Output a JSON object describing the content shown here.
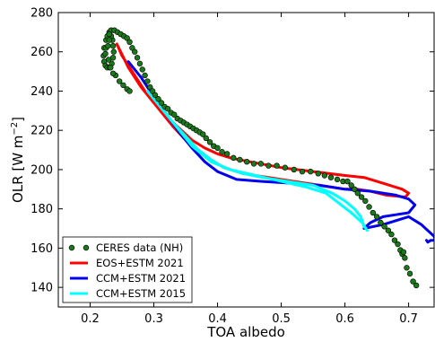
{
  "chart_data": {
    "type": "line",
    "xlabel": "TOA albedo",
    "ylabel_main": "OLR [W m",
    "ylabel_sup": "−2",
    "ylabel_close": "]",
    "xlim": [
      0.15,
      0.74
    ],
    "ylim": [
      130,
      280
    ],
    "xticks": [
      0.2,
      0.3,
      0.4,
      0.5,
      0.6,
      0.7
    ],
    "yticks": [
      140,
      160,
      180,
      200,
      220,
      240,
      260,
      280
    ],
    "grid": false,
    "legend_position": "bottom-left",
    "series": [
      {
        "name": "CERES data (NH)",
        "style": "markers",
        "color": "#1a7a1a",
        "points": [
          [
            0.225,
            266
          ],
          [
            0.227,
            268
          ],
          [
            0.23,
            270
          ],
          [
            0.233,
            271
          ],
          [
            0.238,
            271
          ],
          [
            0.243,
            270
          ],
          [
            0.248,
            269
          ],
          [
            0.253,
            268
          ],
          [
            0.258,
            267
          ],
          [
            0.262,
            265
          ],
          [
            0.266,
            262
          ],
          [
            0.27,
            260
          ],
          [
            0.274,
            257
          ],
          [
            0.278,
            254
          ],
          [
            0.282,
            251
          ],
          [
            0.286,
            248
          ],
          [
            0.29,
            245
          ],
          [
            0.294,
            242
          ],
          [
            0.298,
            240
          ],
          [
            0.302,
            238
          ],
          [
            0.307,
            236
          ],
          [
            0.312,
            234
          ],
          [
            0.317,
            232
          ],
          [
            0.322,
            231
          ],
          [
            0.327,
            229
          ],
          [
            0.332,
            228
          ],
          [
            0.337,
            226
          ],
          [
            0.342,
            225
          ],
          [
            0.347,
            224
          ],
          [
            0.352,
            223
          ],
          [
            0.357,
            222
          ],
          [
            0.362,
            221
          ],
          [
            0.367,
            220
          ],
          [
            0.372,
            219
          ],
          [
            0.377,
            218
          ],
          [
            0.382,
            216
          ],
          [
            0.388,
            214
          ],
          [
            0.394,
            212
          ],
          [
            0.4,
            211
          ],
          [
            0.407,
            209
          ],
          [
            0.415,
            208
          ],
          [
            0.425,
            206
          ],
          [
            0.435,
            205
          ],
          [
            0.446,
            204
          ],
          [
            0.457,
            203
          ],
          [
            0.468,
            203
          ],
          [
            0.48,
            202
          ],
          [
            0.493,
            202
          ],
          [
            0.506,
            201
          ],
          [
            0.52,
            200
          ],
          [
            0.533,
            199
          ],
          [
            0.546,
            199
          ],
          [
            0.558,
            198
          ],
          [
            0.568,
            197
          ],
          [
            0.578,
            196
          ],
          [
            0.588,
            195
          ],
          [
            0.597,
            194
          ],
          [
            0.604,
            194
          ],
          [
            0.61,
            192
          ],
          [
            0.615,
            190
          ],
          [
            0.62,
            188
          ],
          [
            0.626,
            186
          ],
          [
            0.632,
            184
          ],
          [
            0.638,
            181
          ],
          [
            0.644,
            178
          ],
          [
            0.65,
            176
          ],
          [
            0.656,
            173
          ],
          [
            0.662,
            171
          ],
          [
            0.668,
            169
          ],
          [
            0.673,
            167
          ],
          [
            0.678,
            164
          ],
          [
            0.683,
            162
          ],
          [
            0.687,
            159
          ],
          [
            0.69,
            157
          ],
          [
            0.692,
            158
          ],
          [
            0.694,
            155
          ],
          [
            0.697,
            150
          ],
          [
            0.702,
            147
          ],
          [
            0.707,
            143
          ],
          [
            0.712,
            141
          ],
          [
            0.222,
            262
          ],
          [
            0.221,
            258
          ],
          [
            0.222,
            255
          ],
          [
            0.224,
            253
          ],
          [
            0.227,
            252
          ],
          [
            0.231,
            252
          ],
          [
            0.234,
            254
          ],
          [
            0.236,
            257
          ],
          [
            0.237,
            260
          ],
          [
            0.236,
            263
          ],
          [
            0.235,
            266
          ],
          [
            0.233,
            268
          ],
          [
            0.23,
            269
          ],
          [
            0.24,
            248
          ],
          [
            0.246,
            245
          ],
          [
            0.252,
            243
          ],
          [
            0.258,
            241
          ],
          [
            0.262,
            240
          ],
          [
            0.225,
            262
          ],
          [
            0.229,
            256
          ],
          [
            0.232,
            252
          ],
          [
            0.236,
            249
          ],
          [
            0.23,
            266
          ],
          [
            0.224,
            259
          ],
          [
            0.228,
            263
          ]
        ]
      },
      {
        "name": "EOS+ESTM 2021",
        "style": "line",
        "color": "#ff0000",
        "points": [
          [
            0.242,
            264
          ],
          [
            0.26,
            252
          ],
          [
            0.28,
            242
          ],
          [
            0.3,
            234
          ],
          [
            0.32,
            227
          ],
          [
            0.34,
            221
          ],
          [
            0.36,
            215
          ],
          [
            0.38,
            211
          ],
          [
            0.4,
            208
          ],
          [
            0.42,
            206
          ],
          [
            0.45,
            204
          ],
          [
            0.5,
            201
          ],
          [
            0.55,
            199
          ],
          [
            0.6,
            197
          ],
          [
            0.63,
            196
          ],
          [
            0.66,
            193
          ],
          [
            0.69,
            190
          ],
          [
            0.7,
            188
          ],
          [
            0.695,
            186
          ],
          [
            0.665,
            187
          ],
          [
            0.64,
            189
          ],
          [
            0.62,
            190
          ],
          [
            0.6,
            190
          ],
          [
            0.56,
            192
          ],
          [
            0.52,
            194
          ],
          [
            0.48,
            196
          ],
          [
            0.44,
            198
          ],
          [
            0.41,
            201
          ],
          [
            0.39,
            205
          ],
          [
            0.37,
            209
          ],
          [
            0.35,
            215
          ],
          [
            0.33,
            222
          ],
          [
            0.31,
            230
          ],
          [
            0.29,
            238
          ],
          [
            0.27,
            248
          ],
          [
            0.25,
            258
          ],
          [
            0.242,
            264
          ]
        ]
      },
      {
        "name": "CCM+ESTM 2021",
        "style": "line",
        "color": "#0000ee",
        "points": [
          [
            0.26,
            255
          ],
          [
            0.28,
            247
          ],
          [
            0.3,
            237
          ],
          [
            0.32,
            228
          ],
          [
            0.34,
            219
          ],
          [
            0.36,
            211
          ],
          [
            0.38,
            204
          ],
          [
            0.4,
            199
          ],
          [
            0.43,
            195
          ],
          [
            0.47,
            194
          ],
          [
            0.52,
            193
          ],
          [
            0.56,
            192
          ],
          [
            0.6,
            190
          ],
          [
            0.64,
            189
          ],
          [
            0.68,
            187
          ],
          [
            0.7,
            185
          ],
          [
            0.71,
            182
          ],
          [
            0.7,
            178
          ],
          [
            0.68,
            177
          ],
          [
            0.66,
            176
          ],
          [
            0.64,
            173
          ],
          [
            0.63,
            170
          ],
          [
            0.66,
            172
          ],
          [
            0.7,
            176
          ],
          [
            0.72,
            172
          ],
          [
            0.74,
            166
          ],
          [
            0.742,
            164
          ],
          [
            0.735,
            164
          ],
          [
            0.73,
            163
          ],
          [
            0.728,
            164
          ]
        ]
      },
      {
        "name": "CCM+ESTM 2015",
        "style": "line",
        "color": "#00ffff",
        "points": [
          [
            0.29,
            240
          ],
          [
            0.31,
            232
          ],
          [
            0.33,
            224
          ],
          [
            0.35,
            217
          ],
          [
            0.37,
            210
          ],
          [
            0.39,
            205
          ],
          [
            0.41,
            201
          ],
          [
            0.44,
            198
          ],
          [
            0.47,
            196
          ],
          [
            0.51,
            194
          ],
          [
            0.55,
            192
          ],
          [
            0.58,
            188
          ],
          [
            0.6,
            184
          ],
          [
            0.615,
            180
          ],
          [
            0.625,
            176
          ],
          [
            0.63,
            171
          ],
          [
            0.635,
            169
          ],
          [
            0.627,
            173
          ],
          [
            0.61,
            178
          ],
          [
            0.59,
            183
          ],
          [
            0.57,
            188
          ],
          [
            0.54,
            191
          ],
          [
            0.5,
            194
          ],
          [
            0.46,
            197
          ],
          [
            0.42,
            200
          ],
          [
            0.39,
            204
          ],
          [
            0.36,
            212
          ],
          [
            0.34,
            220
          ],
          [
            0.32,
            228
          ],
          [
            0.3,
            236
          ],
          [
            0.29,
            240
          ]
        ]
      }
    ]
  }
}
